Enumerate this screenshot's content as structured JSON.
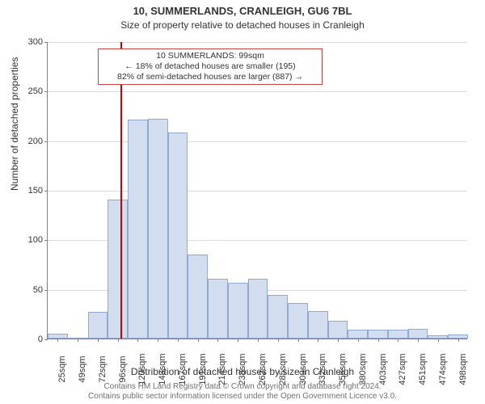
{
  "title": "10, SUMMERLANDS, CRANLEIGH, GU6 7BL",
  "subtitle": "Size of property relative to detached houses in Cranleigh",
  "ylabel": "Number of detached properties",
  "xlabel": "Distribution of detached houses by size in Cranleigh",
  "title_fontsize": 13,
  "subtitle_fontsize": 12,
  "axis_label_fontsize": 12,
  "tick_fontsize": 11,
  "footer_fontsize": 10,
  "annotation_fontsize": 10.5,
  "chart": {
    "type": "histogram",
    "ymin": 0,
    "ymax": 300,
    "yticks": [
      0,
      50,
      100,
      150,
      200,
      250,
      300
    ],
    "xtick_labels": [
      "25sqm",
      "49sqm",
      "72sqm",
      "96sqm",
      "120sqm",
      "143sqm",
      "167sqm",
      "191sqm",
      "214sqm",
      "238sqm",
      "262sqm",
      "285sqm",
      "309sqm",
      "332sqm",
      "356sqm",
      "380sqm",
      "403sqm",
      "427sqm",
      "451sqm",
      "474sqm",
      "498sqm"
    ],
    "values": [
      5,
      0,
      27,
      140,
      221,
      222,
      208,
      85,
      60,
      56,
      60,
      44,
      36,
      28,
      18,
      9,
      9,
      9,
      10,
      3,
      4
    ],
    "bar_fill_color": "#d2ddef",
    "bar_border_color": "#92a9cf",
    "grid_color": "#d9d9d9",
    "axis_color": "#808080",
    "background_color": "#ffffff",
    "marker": {
      "value_sqm": 99,
      "line_color": "#cc0000",
      "line_width": 2
    }
  },
  "annotation": {
    "line1": "10 SUMMERLANDS: 99sqm",
    "line2": "← 18% of detached houses are smaller (195)",
    "line3": "82% of semi-detached houses are larger (887) →",
    "border_color": "#d04040"
  },
  "footer": {
    "line1": "Contains HM Land Registry data © Crown copyright and database right 2024.",
    "line2": "Contains public sector information licensed under the Open Government Licence v3.0."
  }
}
